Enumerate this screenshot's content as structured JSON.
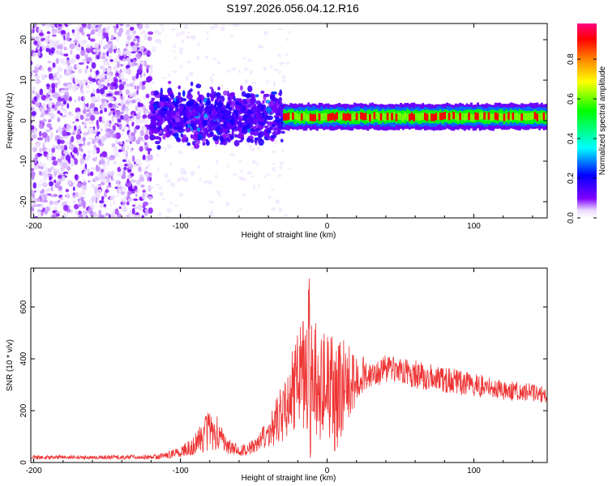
{
  "title": "S197.2026.056.04.12.R16",
  "colors": {
    "snr_line": "#ee3333",
    "colormap": [
      "#ffffff",
      "#d8c8ff",
      "#8000ff",
      "#0000ff",
      "#00ffff",
      "#00ff00",
      "#ffff00",
      "#ff8000",
      "#ff0000"
    ]
  },
  "chart_data": [
    {
      "type": "heatmap",
      "xlabel": "Height of straight line (km)",
      "ylabel": "Frequency (Hz)",
      "xlim": [
        -202,
        150
      ],
      "ylim": [
        -24,
        24
      ],
      "xticks": [
        -200,
        -100,
        0,
        100
      ],
      "yticks": [
        20,
        10,
        0,
        -10,
        -20
      ],
      "colorbar": {
        "label": "Normalized spectral amplitude",
        "range": [
          0,
          0.98
        ],
        "ticks": [
          0.0,
          0.2,
          0.4,
          0.6,
          0.8
        ]
      },
      "regions": [
        {
          "x": [
            -202,
            -120
          ],
          "freq_spread": [
            -24,
            24
          ],
          "amplitude": [
            0.0,
            0.05
          ]
        },
        {
          "x": [
            -120,
            -30
          ],
          "freq_spread": [
            -10,
            8
          ],
          "amplitude": [
            0.05,
            0.25
          ]
        },
        {
          "x": [
            -30,
            150
          ],
          "center_freq": 1,
          "amplitude": [
            0.4,
            0.98
          ]
        }
      ]
    },
    {
      "type": "line",
      "xlabel": "Height of straight line (km)",
      "ylabel": "SNR (10 * v/v)",
      "xlim": [
        -202,
        150
      ],
      "ylim": [
        0,
        750
      ],
      "xticks": [
        -200,
        -100,
        0,
        100
      ],
      "yticks": [
        0,
        200,
        400,
        600
      ],
      "envelope": {
        "x": [
          -202,
          -150,
          -115,
          -100,
          -90,
          -80,
          -75,
          -70,
          -60,
          -50,
          -40,
          -30,
          -20,
          -15,
          -12,
          -10,
          -5,
          0,
          5,
          10,
          15,
          20,
          25,
          30,
          40,
          50,
          60,
          80,
          100,
          120,
          140,
          150
        ],
        "mean": [
          20,
          20,
          22,
          40,
          70,
          130,
          110,
          70,
          45,
          60,
          110,
          200,
          320,
          350,
          350,
          330,
          300,
          300,
          260,
          280,
          300,
          320,
          340,
          345,
          360,
          355,
          340,
          320,
          300,
          280,
          270,
          265
        ],
        "amp": [
          8,
          8,
          10,
          20,
          40,
          90,
          70,
          35,
          20,
          30,
          60,
          120,
          180,
          240,
          400,
          250,
          220,
          230,
          240,
          200,
          150,
          90,
          70,
          60,
          55,
          55,
          55,
          50,
          45,
          40,
          35,
          35
        ]
      }
    }
  ]
}
